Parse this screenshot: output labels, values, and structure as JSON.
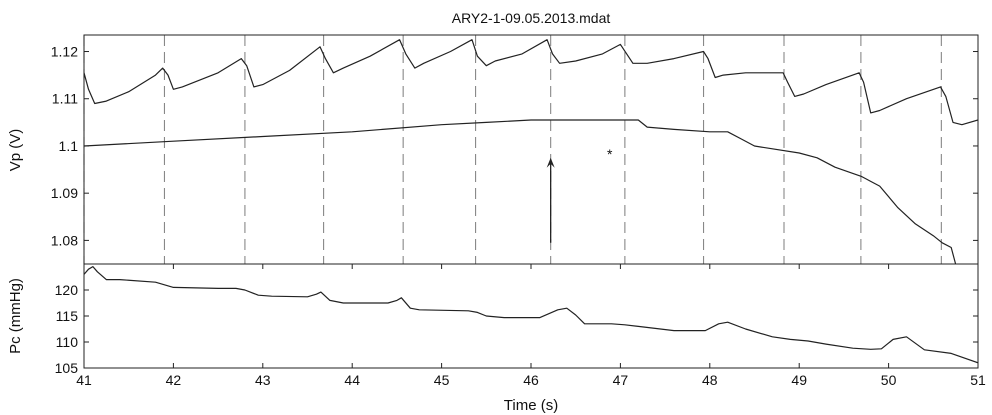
{
  "title": "ARY2-1-09.05.2013.mdat",
  "xlabel": "Time (s)",
  "colors": {
    "line": "#222222",
    "dashed": "#888888",
    "background": "#ffffff"
  },
  "chart_data": [
    {
      "type": "line",
      "panel": "top",
      "title": "ARY2-1-09.05.2013.mdat",
      "xlabel": "",
      "ylabel": "Vp (V)",
      "xlim": [
        41,
        51
      ],
      "ylim": [
        1.075,
        1.1235
      ],
      "yticks": [
        1.08,
        1.09,
        1.1,
        1.11,
        1.12
      ],
      "ytick_labels": [
        "1.08",
        "1.09",
        "1.1",
        "1.11",
        "1.12"
      ],
      "grid": false,
      "series": [
        {
          "x": [
            41.0,
            41.05,
            41.12,
            41.25,
            41.5,
            41.8,
            41.88,
            41.94,
            42.0,
            42.1,
            42.5,
            42.76,
            42.82,
            42.9,
            43.0,
            43.3,
            43.64,
            43.7,
            43.79,
            43.9,
            44.2,
            44.53,
            44.6,
            44.7,
            44.8,
            45.1,
            45.34,
            45.4,
            45.5,
            45.6,
            45.9,
            46.18,
            46.24,
            46.32,
            46.5,
            46.8,
            47.0,
            47.07,
            47.14,
            47.3,
            47.6,
            47.93,
            47.98,
            48.06,
            48.15,
            48.4,
            48.82,
            48.87,
            48.95,
            49.05,
            49.3,
            49.67,
            49.72,
            49.8,
            49.9,
            50.2,
            50.58,
            50.64,
            50.72,
            50.82,
            51.0
          ],
          "y": [
            1.1155,
            1.112,
            1.109,
            1.1095,
            1.1115,
            1.115,
            1.1165,
            1.115,
            1.112,
            1.1125,
            1.1155,
            1.1185,
            1.117,
            1.1125,
            1.113,
            1.116,
            1.121,
            1.1185,
            1.1155,
            1.1165,
            1.119,
            1.1225,
            1.1195,
            1.1165,
            1.1175,
            1.12,
            1.1225,
            1.119,
            1.117,
            1.118,
            1.1195,
            1.1225,
            1.1195,
            1.1175,
            1.118,
            1.1195,
            1.1215,
            1.1195,
            1.1175,
            1.1175,
            1.1185,
            1.12,
            1.1185,
            1.1145,
            1.115,
            1.1155,
            1.1155,
            1.1135,
            1.1105,
            1.111,
            1.113,
            1.1155,
            1.1135,
            1.107,
            1.1075,
            1.11,
            1.1125,
            1.1105,
            1.105,
            1.1045,
            1.1055
          ]
        },
        {
          "x": [
            41.0,
            42.0,
            43.0,
            44.0,
            45.0,
            45.5,
            46.0,
            46.5,
            47.0,
            47.2,
            47.3,
            47.6,
            48.0,
            48.2,
            48.35,
            48.5,
            49.0,
            49.2,
            49.4,
            49.7,
            49.75,
            49.8,
            49.9,
            50.1,
            50.3,
            50.5,
            50.6,
            50.7,
            50.75
          ],
          "y": [
            1.1,
            1.101,
            1.102,
            1.103,
            1.1045,
            1.105,
            1.1055,
            1.1055,
            1.1055,
            1.1055,
            1.104,
            1.1035,
            1.103,
            1.103,
            1.1015,
            1.1,
            1.0985,
            1.0975,
            1.0955,
            1.0935,
            1.093,
            1.0925,
            1.0915,
            1.087,
            1.0835,
            1.081,
            1.0795,
            1.0785,
            1.075
          ]
        }
      ],
      "vlines_x": [
        41.0,
        41.9,
        42.8,
        43.68,
        44.57,
        45.38,
        46.22,
        47.05,
        47.93,
        48.83,
        49.69,
        50.59
      ],
      "annotations": [
        {
          "type": "arrow",
          "x": 46.22,
          "y_from": 1.0795,
          "y_to": 1.0975
        },
        {
          "type": "text",
          "text": "*",
          "x": 46.88,
          "y": 1.0985
        }
      ]
    },
    {
      "type": "line",
      "panel": "bottom",
      "xlabel": "Time (s)",
      "ylabel": "Pc (mmHg)",
      "xlim": [
        41,
        51
      ],
      "ylim": [
        105,
        125
      ],
      "yticks": [
        105,
        110,
        115,
        120
      ],
      "ytick_labels": [
        "105",
        "110",
        "115",
        "120"
      ],
      "xticks": [
        41,
        42,
        43,
        44,
        45,
        46,
        47,
        48,
        49,
        50,
        51
      ],
      "xtick_labels": [
        "41",
        "42",
        "43",
        "44",
        "45",
        "46",
        "47",
        "48",
        "49",
        "50",
        "51"
      ],
      "grid": false,
      "series": [
        {
          "x": [
            41.0,
            41.05,
            41.1,
            41.15,
            41.25,
            41.4,
            41.8,
            42.0,
            42.5,
            42.7,
            42.8,
            42.95,
            43.1,
            43.5,
            43.6,
            43.65,
            43.75,
            43.9,
            44.4,
            44.5,
            44.55,
            44.65,
            44.75,
            45.3,
            45.4,
            45.5,
            45.7,
            46.1,
            46.3,
            46.4,
            46.5,
            46.6,
            46.9,
            47.05,
            47.2,
            47.4,
            47.6,
            47.95,
            48.1,
            48.2,
            48.4,
            48.7,
            48.9,
            49.1,
            49.3,
            49.6,
            49.8,
            49.92,
            50.05,
            50.2,
            50.4,
            50.7,
            51.0
          ],
          "y": [
            123.0,
            124.0,
            124.5,
            123.5,
            122.0,
            122.0,
            121.5,
            120.5,
            120.3,
            120.3,
            120.0,
            119.0,
            118.8,
            118.7,
            119.2,
            119.6,
            118.0,
            117.5,
            117.5,
            118.0,
            118.5,
            116.5,
            116.2,
            116.0,
            115.7,
            115.0,
            114.7,
            114.7,
            116.2,
            116.5,
            115.2,
            113.5,
            113.5,
            113.3,
            113.0,
            112.6,
            112.2,
            112.2,
            113.5,
            113.8,
            112.5,
            111.0,
            110.5,
            110.2,
            109.6,
            108.8,
            108.6,
            108.7,
            110.5,
            111.0,
            108.5,
            107.8,
            106.0
          ]
        }
      ],
      "vlines_x": []
    }
  ]
}
